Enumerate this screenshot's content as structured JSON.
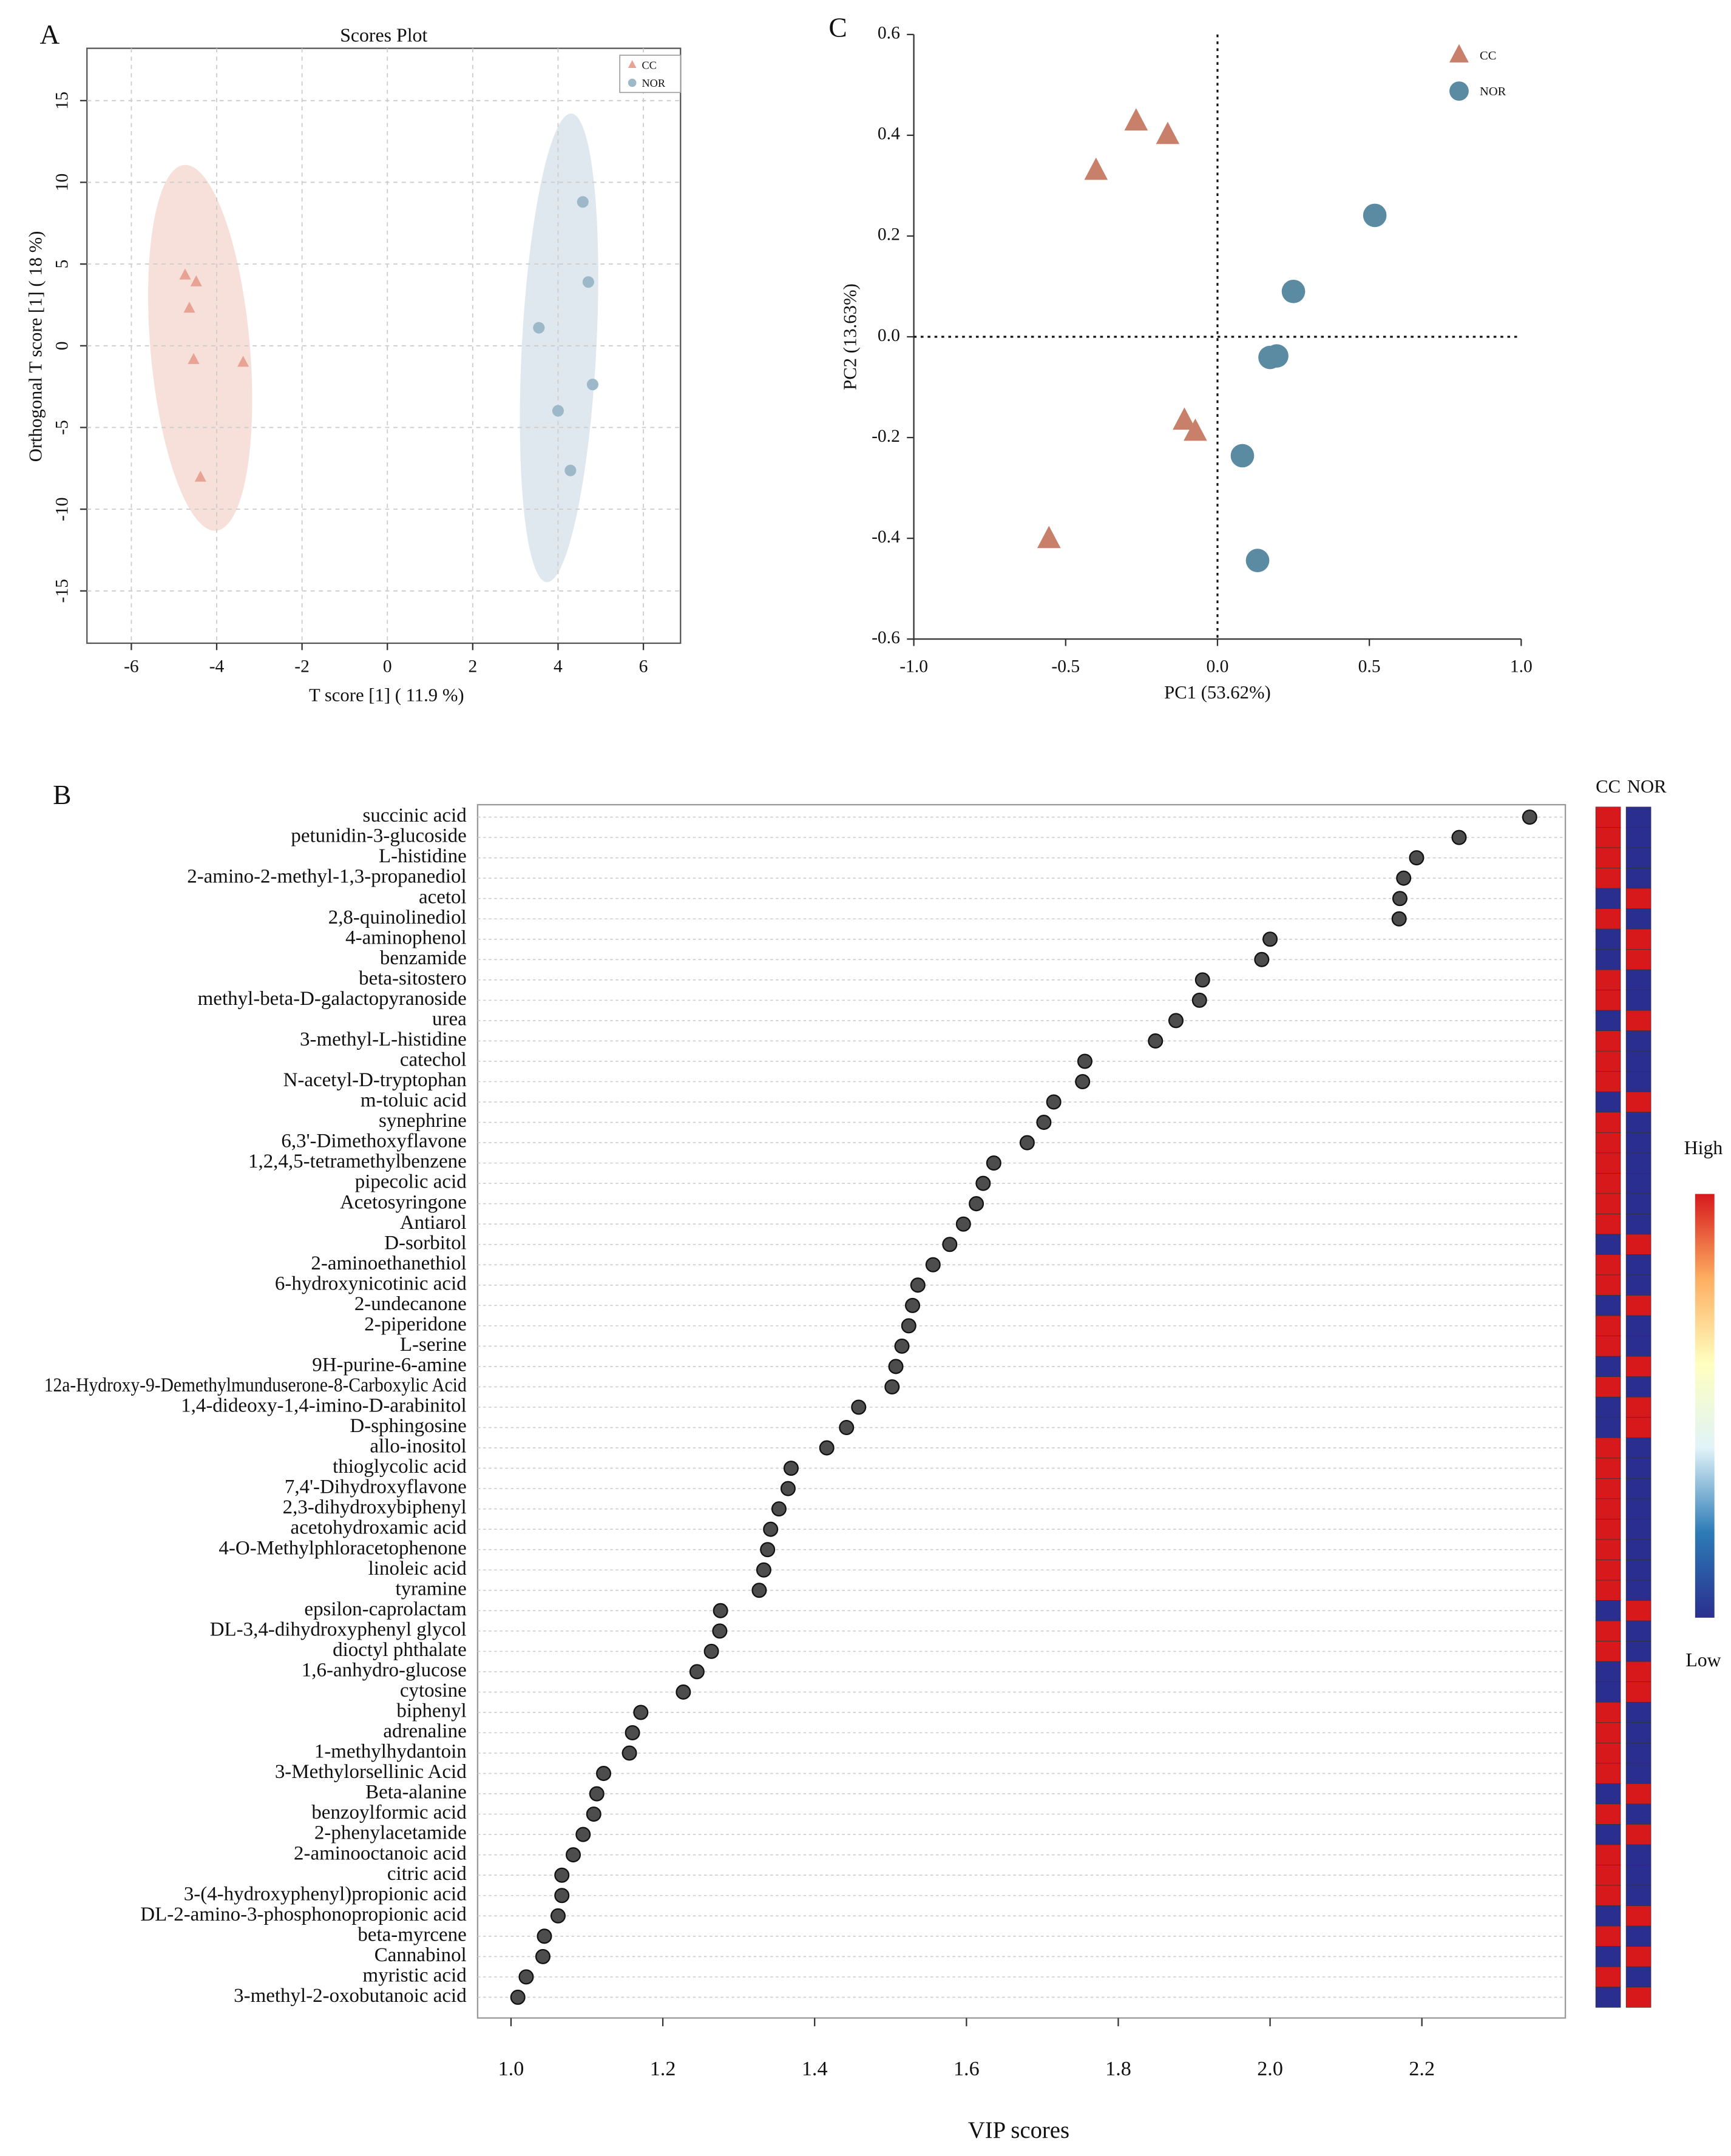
{
  "chart_data": [
    {
      "type": "scatter",
      "panel": "A",
      "title": "Scores Plot",
      "xlabel": "T score [1] ( 11.9 %)",
      "ylabel": "Orthogonal T score [1] ( 18 %)",
      "xlim": [
        -7.04,
        6.87
      ],
      "ylim": [
        -18.2,
        18.2
      ],
      "xticks": [
        -6,
        -4,
        -2,
        0,
        2,
        4,
        6
      ],
      "yticks": [
        15,
        10,
        5,
        0,
        -5,
        -10,
        -15
      ],
      "grid": true,
      "legend": "upper right",
      "series": [
        {
          "name": "CC",
          "color": "#e8a395",
          "marker": "triangle",
          "x": [
            -4.74,
            -4.48,
            -4.64,
            -4.54,
            -3.38,
            -4.38
          ],
          "values": [
            4.32,
            3.9,
            2.29,
            -0.85,
            -1.02,
            -8.05
          ]
        },
        {
          "name": "NOR",
          "color": "#9db8c9",
          "marker": "circle",
          "x": [
            4.58,
            4.71,
            3.55,
            4.81,
            4.0,
            4.29
          ],
          "values": [
            8.8,
            3.9,
            1.1,
            -2.37,
            -3.98,
            -7.63
          ]
        }
      ]
    },
    {
      "type": "scatter",
      "panel": "C",
      "xlabel": "PC1 (53.62%)",
      "ylabel": "PC2 (13.63%)",
      "xlim": [
        -1,
        1
      ],
      "ylim": [
        -0.6,
        0.6
      ],
      "xticks": [
        {
          "value": -1,
          "label": "-1.0"
        },
        -0.5,
        {
          "value": 0,
          "label": "0.0"
        },
        0.5,
        {
          "value": 1,
          "label": "1.0"
        }
      ],
      "yticks": [
        0.6,
        0.4,
        0.2,
        {
          "value": 0,
          "label": "0.0"
        },
        -0.2,
        -0.4,
        -0.6
      ],
      "grid": false,
      "zero_lines": true,
      "legend": "upper right",
      "series": [
        {
          "name": "CC",
          "color": "#c8806a",
          "marker": "triangle",
          "x": [
            -0.268,
            -0.164,
            -0.4,
            -0.109,
            -0.073,
            -0.555
          ],
          "values": [
            0.427,
            0.4,
            0.329,
            -0.167,
            -0.189,
            -0.402
          ]
        },
        {
          "name": "NOR",
          "color": "#5b8aa3",
          "marker": "circle",
          "x": [
            0.518,
            0.25,
            0.195,
            0.173,
            0.082,
            0.132
          ],
          "values": [
            0.241,
            0.09,
            -0.038,
            -0.041,
            -0.236,
            -0.444
          ]
        }
      ]
    },
    {
      "type": "dot",
      "panel": "B",
      "xlabel": "VIP scores",
      "xlim": [
        0.956,
        2.389
      ],
      "xticks": [
        {
          "value": 1,
          "label": "1.0"
        },
        1.2,
        1.4,
        1.6,
        1.8,
        {
          "value": 2,
          "label": "2.0"
        },
        2.2
      ],
      "color": "#4d4d4d",
      "categories": [
        "succinic acid",
        "petunidin-3-glucoside",
        "L-histidine",
        "2-amino-2-methyl-1,3-propanediol",
        "acetol",
        "2,8-quinolinediol",
        "4-aminophenol",
        "benzamide",
        "beta-sitostero",
        "methyl-beta-D-galactopyranoside",
        "urea",
        "3-methyl-L-histidine",
        "catechol",
        "N-acetyl-D-tryptophan",
        "m-toluic acid",
        "synephrine",
        "6,3'-Dimethoxyflavone",
        "1,2,4,5-tetramethylbenzene",
        "pipecolic acid",
        "Acetosyringone",
        "Antiarol",
        "D-sorbitol",
        "2-aminoethanethiol",
        "6-hydroxynicotinic acid",
        "2-undecanone",
        "2-piperidone",
        "L-serine",
        "9H-purine-6-amine",
        "12a-Hydroxy-9-Demethylmunduserone-8-Carboxylic Acid",
        "1,4-dideoxy-1,4-imino-D-arabinitol",
        "D-sphingosine",
        "allo-inositol",
        "thioglycolic acid",
        "7,4'-Dihydroxyflavone",
        "2,3-dihydroxybiphenyl",
        "acetohydroxamic acid",
        "4-O-Methylphloracetophenone",
        "linoleic acid",
        "tyramine",
        "epsilon-caprolactam",
        "DL-3,4-dihydroxyphenyl glycol",
        "dioctyl phthalate",
        "1,6-anhydro-glucose",
        "cytosine",
        "biphenyl",
        "adrenaline",
        "1-methylhydantoin",
        "3-Methylorsellinic Acid",
        "Beta-alanine",
        "benzoylformic acid",
        "2-phenylacetamide",
        "2-aminooctanoic acid",
        "citric acid",
        "3-(4-hydroxyphenyl)propionic acid",
        "DL-2-amino-3-phosphonopropionic acid",
        "beta-myrcene",
        "Cannabinol",
        "myristic acid",
        "3-methyl-2-oxobutanoic acid"
      ],
      "values": [
        2.342,
        2.249,
        2.193,
        2.176,
        2.171,
        2.17,
        2.0,
        1.989,
        1.911,
        1.907,
        1.876,
        1.849,
        1.756,
        1.753,
        1.715,
        1.702,
        1.68,
        1.636,
        1.622,
        1.613,
        1.596,
        1.578,
        1.556,
        1.536,
        1.529,
        1.524,
        1.515,
        1.507,
        1.502,
        1.458,
        1.442,
        1.416,
        1.369,
        1.365,
        1.353,
        1.342,
        1.338,
        1.333,
        1.327,
        1.276,
        1.275,
        1.264,
        1.245,
        1.227,
        1.171,
        1.16,
        1.156,
        1.122,
        1.113,
        1.109,
        1.095,
        1.082,
        1.067,
        1.067,
        1.062,
        1.044,
        1.042,
        1.02,
        1.009
      ],
      "heatmap": {
        "columns": [
          "CC",
          "NOR"
        ],
        "zlim": [
          0,
          1
        ],
        "colormap": [
          "#2a2f8f",
          "#2c7bb6",
          "#e0f3f8",
          "#ffffbf",
          "#fdae61",
          "#d7191c"
        ],
        "high": "High",
        "low": "Low",
        "values": [
          [
            1,
            1,
            1,
            1,
            0,
            1,
            0,
            0,
            1,
            1,
            0,
            1,
            1,
            1,
            0,
            1,
            1,
            1,
            1,
            1,
            1,
            0,
            1,
            1,
            0,
            1,
            1,
            0,
            1,
            0,
            0,
            1,
            1,
            1,
            1,
            1,
            1,
            1,
            1,
            0,
            1,
            1,
            0,
            0,
            1,
            1,
            1,
            1,
            0,
            1,
            0,
            1,
            1,
            1,
            0,
            1,
            0,
            1,
            0
          ],
          [
            0,
            0,
            0,
            0,
            1,
            0,
            1,
            1,
            0,
            0,
            1,
            0,
            0,
            0,
            1,
            0,
            0,
            0,
            0,
            0,
            0,
            1,
            0,
            0,
            1,
            0,
            0,
            1,
            0,
            1,
            1,
            0,
            0,
            0,
            0,
            0,
            0,
            0,
            0,
            1,
            0,
            0,
            1,
            1,
            0,
            0,
            0,
            0,
            1,
            0,
            1,
            0,
            0,
            0,
            1,
            0,
            1,
            0,
            1
          ]
        ]
      }
    }
  ]
}
